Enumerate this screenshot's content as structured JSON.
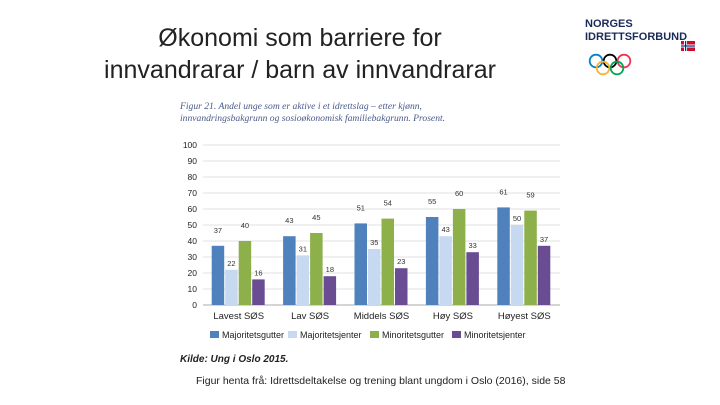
{
  "slide": {
    "title_line1": "Økonomi som barriere for",
    "title_line2": "innvandrarar / barn av innvandrarar",
    "footnote": "Figur henta frå: Idrettsdeltakelse og trening blant ungdom i Oslo (2016), side 58"
  },
  "logo": {
    "line1": "NORGES",
    "line2": "IDRETTSFORBUND",
    "ring_colors": [
      "#0081c8",
      "#fcb131",
      "#000000",
      "#00a651",
      "#ee334e"
    ],
    "flag_colors": [
      "#c8102e",
      "#ffffff",
      "#003087"
    ]
  },
  "figure": {
    "caption_line1": "Figur 21. Andel unge som er aktive i et idrettslag – etter kjønn,",
    "caption_line2": "innvandringsbakgrunn og sosioøkonomisk familiebakgrunn. Prosent.",
    "source": "Kilde: Ung i Oslo 2015."
  },
  "chart_data": {
    "type": "bar",
    "categories": [
      "Lavest SØS",
      "Lav SØS",
      "Middels SØS",
      "Høy SØS",
      "Høyest SØS"
    ],
    "series": [
      {
        "name": "Majoritetsgutter",
        "color": "#4f81bd",
        "values": [
          37,
          43,
          51,
          55,
          61
        ]
      },
      {
        "name": "Majoritetsjenter",
        "color": "#c6d9f1",
        "values": [
          22,
          31,
          35,
          43,
          50
        ]
      },
      {
        "name": "Minoritetsgutter",
        "color": "#8db04a",
        "values": [
          40,
          45,
          54,
          60,
          59
        ]
      },
      {
        "name": "Minoritetsjenter",
        "color": "#6a4c93",
        "values": [
          16,
          18,
          23,
          33,
          37
        ]
      }
    ],
    "ylim": [
      0,
      100
    ],
    "yticks": [
      0,
      10,
      20,
      30,
      40,
      50,
      60,
      70,
      80,
      90,
      100
    ],
    "grid": true,
    "legend": "bottom"
  }
}
